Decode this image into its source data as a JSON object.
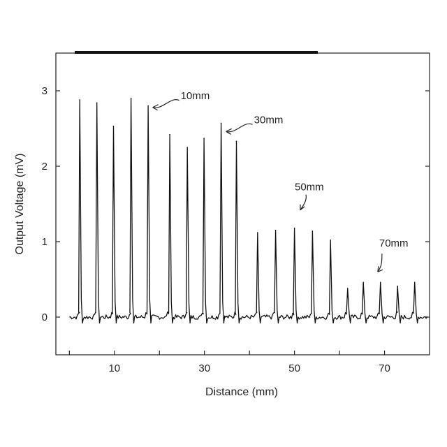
{
  "chart_data": {
    "type": "line",
    "xlabel": "Distance (mm)",
    "ylabel": "Output Voltage (mV)",
    "xlim": [
      -3,
      80
    ],
    "ylim": [
      -0.5,
      3.5
    ],
    "x_ticks": [
      10,
      30,
      50,
      70
    ],
    "x_minor_ticks": [
      0,
      20,
      40,
      60
    ],
    "y_ticks": [
      0,
      1,
      2,
      3
    ],
    "grid": false,
    "baseline": 0,
    "series": [
      {
        "peaks": [
          {
            "x": 2.3,
            "y": 2.88
          },
          {
            "x": 6.1,
            "y": 2.84
          },
          {
            "x": 9.8,
            "y": 2.53
          },
          {
            "x": 13.7,
            "y": 2.9
          },
          {
            "x": 17.5,
            "y": 2.8
          },
          {
            "x": 22.3,
            "y": 2.42
          },
          {
            "x": 26.2,
            "y": 2.25
          },
          {
            "x": 29.9,
            "y": 2.37
          },
          {
            "x": 33.7,
            "y": 2.57
          },
          {
            "x": 37.1,
            "y": 2.33
          },
          {
            "x": 41.8,
            "y": 1.12
          },
          {
            "x": 45.8,
            "y": 1.15
          },
          {
            "x": 50.0,
            "y": 1.18
          },
          {
            "x": 54.0,
            "y": 1.14
          },
          {
            "x": 58.0,
            "y": 1.02
          },
          {
            "x": 61.8,
            "y": 0.38
          },
          {
            "x": 65.3,
            "y": 0.46
          },
          {
            "x": 69.1,
            "y": 0.46
          },
          {
            "x": 72.9,
            "y": 0.41
          },
          {
            "x": 76.7,
            "y": 0.46
          }
        ]
      }
    ],
    "annotations": [
      {
        "text": "10mm",
        "x": 18.5,
        "y": 2.78
      },
      {
        "text": "30mm",
        "x": 34.8,
        "y": 2.46
      },
      {
        "text": "50mm",
        "x": 51.3,
        "y": 1.42
      },
      {
        "text": "70mm",
        "x": 68.5,
        "y": 0.6
      }
    ]
  }
}
